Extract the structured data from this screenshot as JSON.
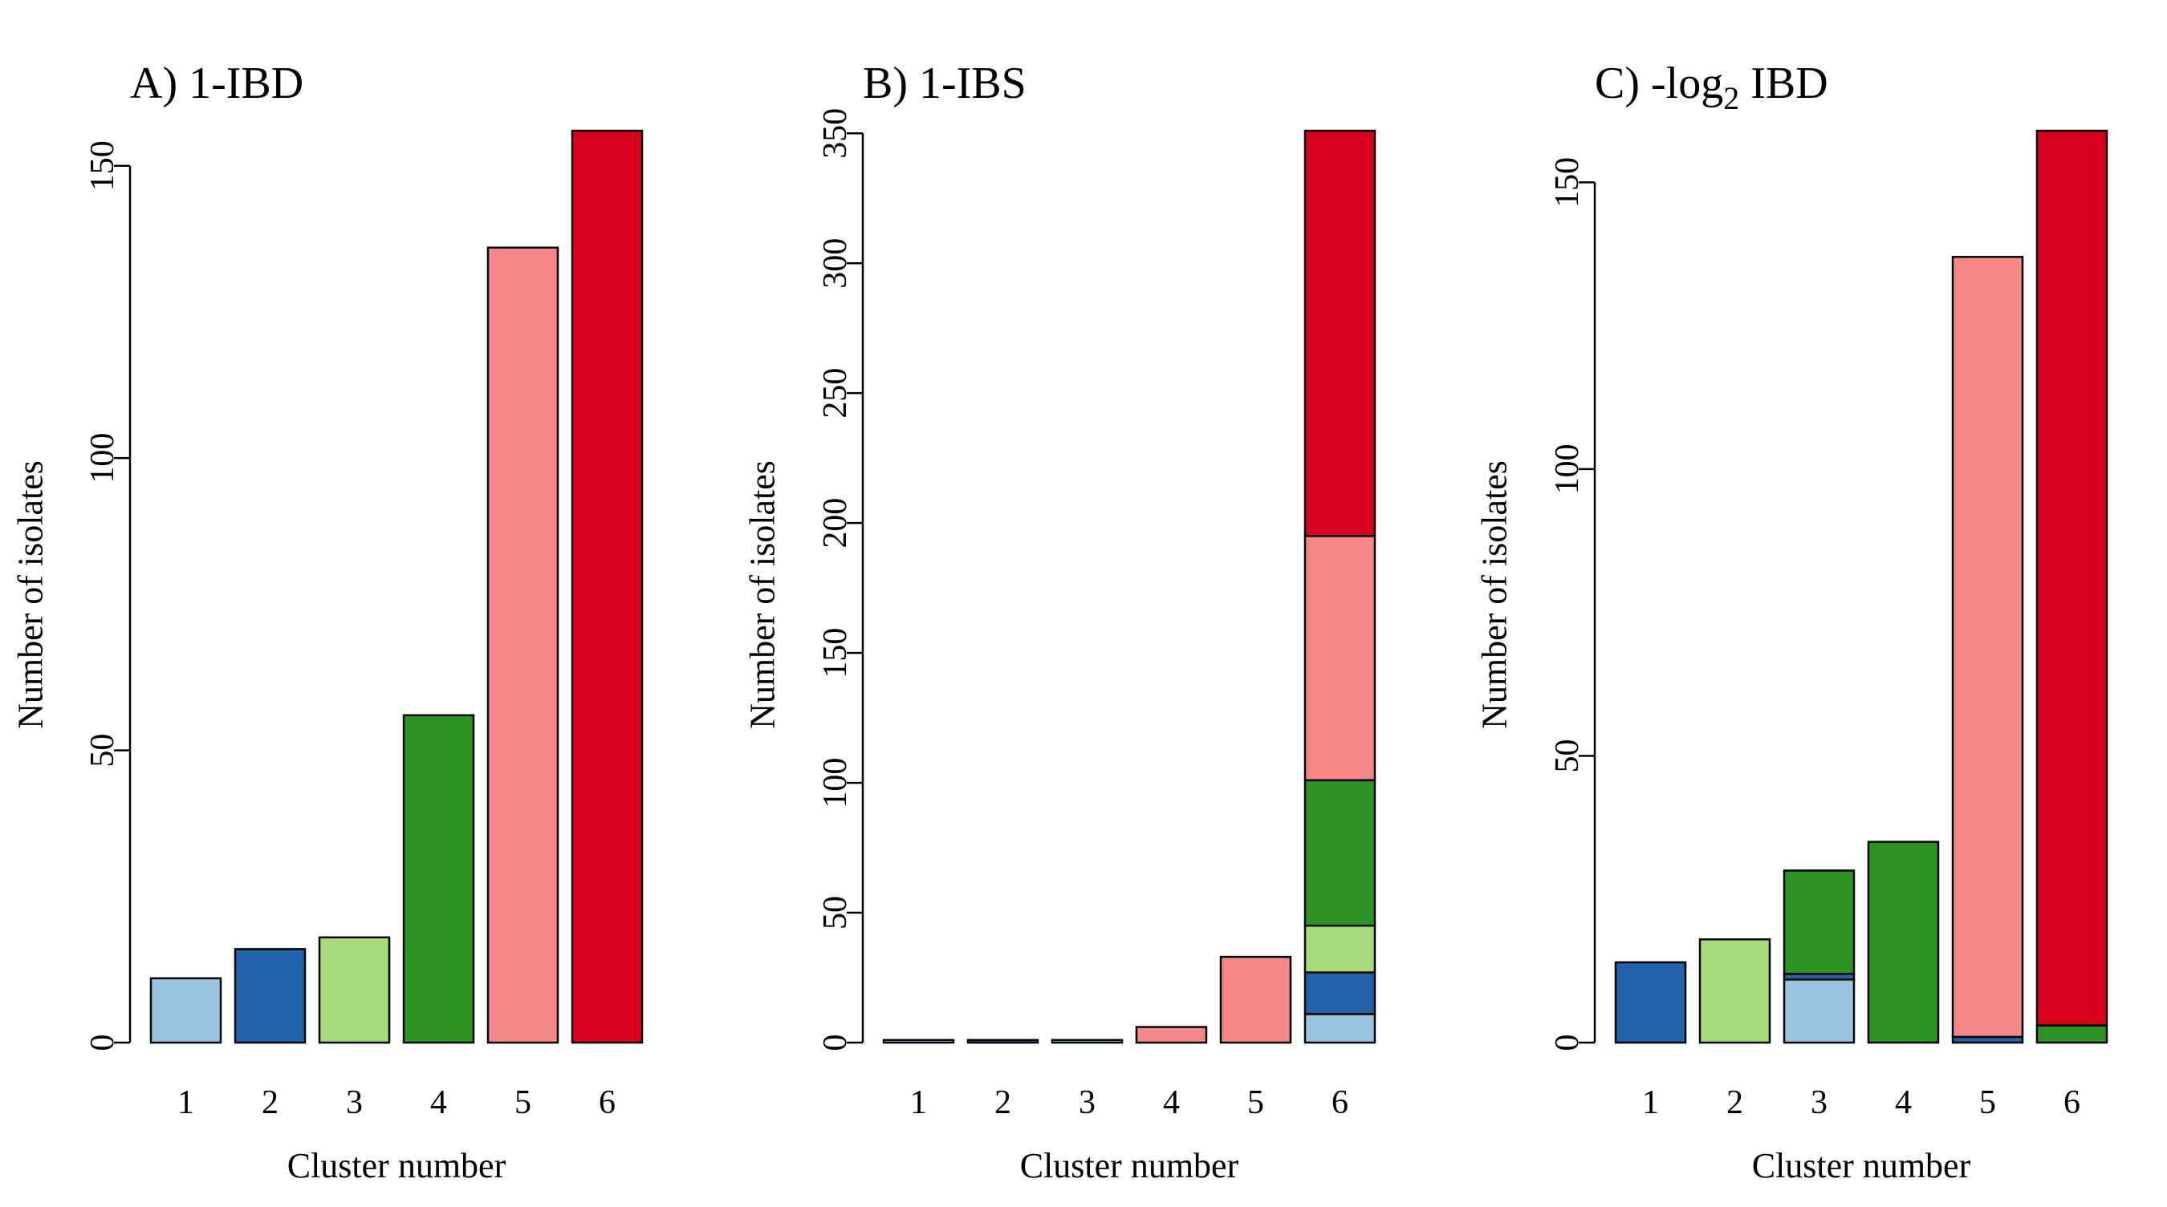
{
  "palette": {
    "c1": "#9ac4de",
    "c2": "#1f63a8",
    "c3": "#a6dc7a",
    "c4": "#2e9421",
    "c5": "#f7888a",
    "c6": "#d8001c"
  },
  "chart_data": [
    {
      "type": "bar",
      "stacked": true,
      "title": "A) 1-IBD",
      "title_parts": {
        "main": "A) 1-IBD",
        "sub": "",
        "tail": ""
      },
      "xlabel": "Cluster number",
      "ylabel": "Number of isolates",
      "categories": [
        "1",
        "2",
        "3",
        "4",
        "5",
        "6"
      ],
      "ylim": [
        0,
        156
      ],
      "yticks": [
        0,
        50,
        100,
        150
      ],
      "grid": false,
      "legend": "none",
      "stack_colors": [
        "c1",
        "c2",
        "c3",
        "c4",
        "c5",
        "c6"
      ],
      "segments": [
        [
          11,
          0,
          0,
          0,
          0,
          0
        ],
        [
          0,
          16,
          0,
          0,
          0,
          0
        ],
        [
          0,
          0,
          18,
          0,
          0,
          0
        ],
        [
          0,
          0,
          0,
          56,
          0,
          0
        ],
        [
          0,
          0,
          0,
          0,
          136,
          0
        ],
        [
          0,
          0,
          0,
          0,
          0,
          156
        ]
      ]
    },
    {
      "type": "bar",
      "stacked": true,
      "title": "B) 1-IBS",
      "title_parts": {
        "main": "B) 1-IBS",
        "sub": "",
        "tail": ""
      },
      "xlabel": "Cluster number",
      "ylabel": "Number of isolates",
      "categories": [
        "1",
        "2",
        "3",
        "4",
        "5",
        "6"
      ],
      "ylim": [
        0,
        351
      ],
      "yticks": [
        0,
        50,
        100,
        150,
        200,
        250,
        300,
        350
      ],
      "grid": false,
      "legend": "none",
      "stack_colors": [
        "c1",
        "c2",
        "c3",
        "c4",
        "c5",
        "c6"
      ],
      "segments": [
        [
          1,
          0,
          0,
          0,
          0,
          0
        ],
        [
          0,
          1,
          0,
          0,
          0,
          0
        ],
        [
          0,
          0,
          1,
          0,
          0,
          0
        ],
        [
          0,
          0,
          0,
          0,
          6,
          0
        ],
        [
          0,
          0,
          0,
          0,
          33,
          0
        ],
        [
          11,
          16,
          18,
          56,
          94,
          156
        ]
      ]
    },
    {
      "type": "bar",
      "stacked": true,
      "title": "C) -log2 IBD",
      "title_parts": {
        "main": "C) -log",
        "sub": "2",
        "tail": " IBD"
      },
      "xlabel": "Cluster number",
      "ylabel": "Number of isolates",
      "categories": [
        "1",
        "2",
        "3",
        "4",
        "5",
        "6"
      ],
      "ylim": [
        0,
        159
      ],
      "yticks": [
        0,
        50,
        100,
        150
      ],
      "grid": false,
      "legend": "none",
      "stack_colors": [
        "c1",
        "c2",
        "c3",
        "c4",
        "c5",
        "c6"
      ],
      "segments": [
        [
          0,
          14,
          0,
          0,
          0,
          0
        ],
        [
          0,
          0,
          18,
          0,
          0,
          0
        ],
        [
          11,
          1,
          0,
          18,
          0,
          0
        ],
        [
          0,
          0,
          0,
          35,
          0,
          0
        ],
        [
          0,
          1,
          0,
          0,
          136,
          0
        ],
        [
          0,
          0,
          0,
          3,
          0,
          156
        ]
      ]
    }
  ]
}
